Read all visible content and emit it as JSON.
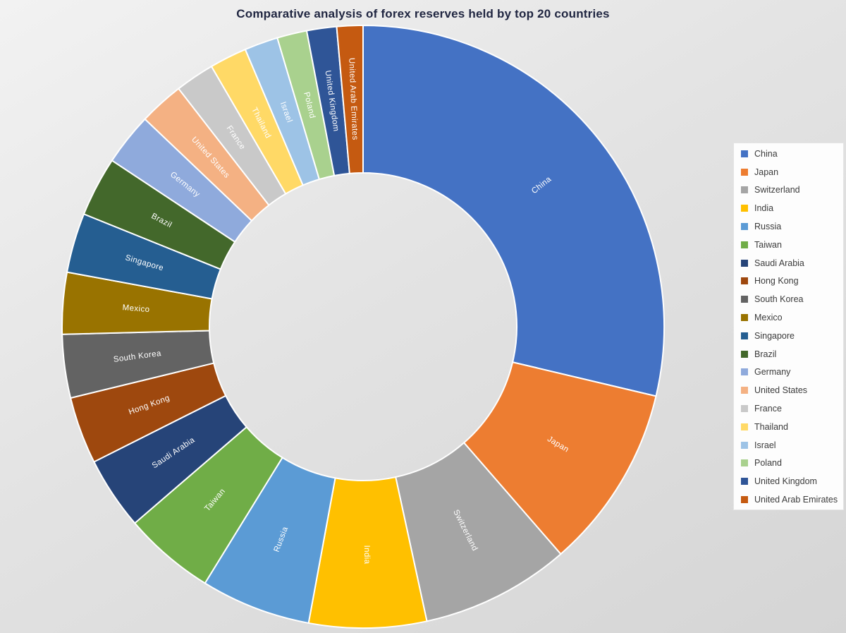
{
  "chart_data": {
    "type": "pie",
    "subtype": "doughnut",
    "title": "Comparative analysis of forex reserves held by top 20 countries",
    "legend_position": "right",
    "direction": "clockwise",
    "start_angle_deg": 0,
    "hole_ratio": 0.51,
    "values_are": "estimated percent share of total (chart shows no numeric labels; shares estimated from arc angles)",
    "categories": [
      "China",
      "Japan",
      "Switzerland",
      "India",
      "Russia",
      "Taiwan",
      "Saudi Arabia",
      "Hong Kong",
      "South Korea",
      "Mexico",
      "Singapore",
      "Brazil",
      "Germany",
      "United States",
      "France",
      "Thailand",
      "Israel",
      "Poland",
      "United Kingdom",
      "United Arab Emirates"
    ],
    "values": [
      28.7,
      9.9,
      8.0,
      6.3,
      5.9,
      4.9,
      3.9,
      3.6,
      3.4,
      3.3,
      3.2,
      3.2,
      2.8,
      2.4,
      2.1,
      2.0,
      1.8,
      1.6,
      1.6,
      1.4
    ],
    "colors": [
      "#4472C4",
      "#ED7D31",
      "#A5A5A5",
      "#FFC000",
      "#5B9BD5",
      "#70AD47",
      "#264478",
      "#9E480E",
      "#636363",
      "#997300",
      "#255E91",
      "#43682B",
      "#8FAADC",
      "#F4B183",
      "#C9C9C9",
      "#FFD966",
      "#9DC3E6",
      "#A9D18E",
      "#2F5597",
      "#C55A11"
    ],
    "style": {
      "title_color": "#1f2540",
      "background_top": "#f2f2f2",
      "background_bottom": "#d5d5d5",
      "slice_border_color": "#ffffff",
      "slice_label_color": "#ffffff",
      "legend_background": "#fdfdfd",
      "legend_text_color": "#3b3b3b"
    }
  }
}
